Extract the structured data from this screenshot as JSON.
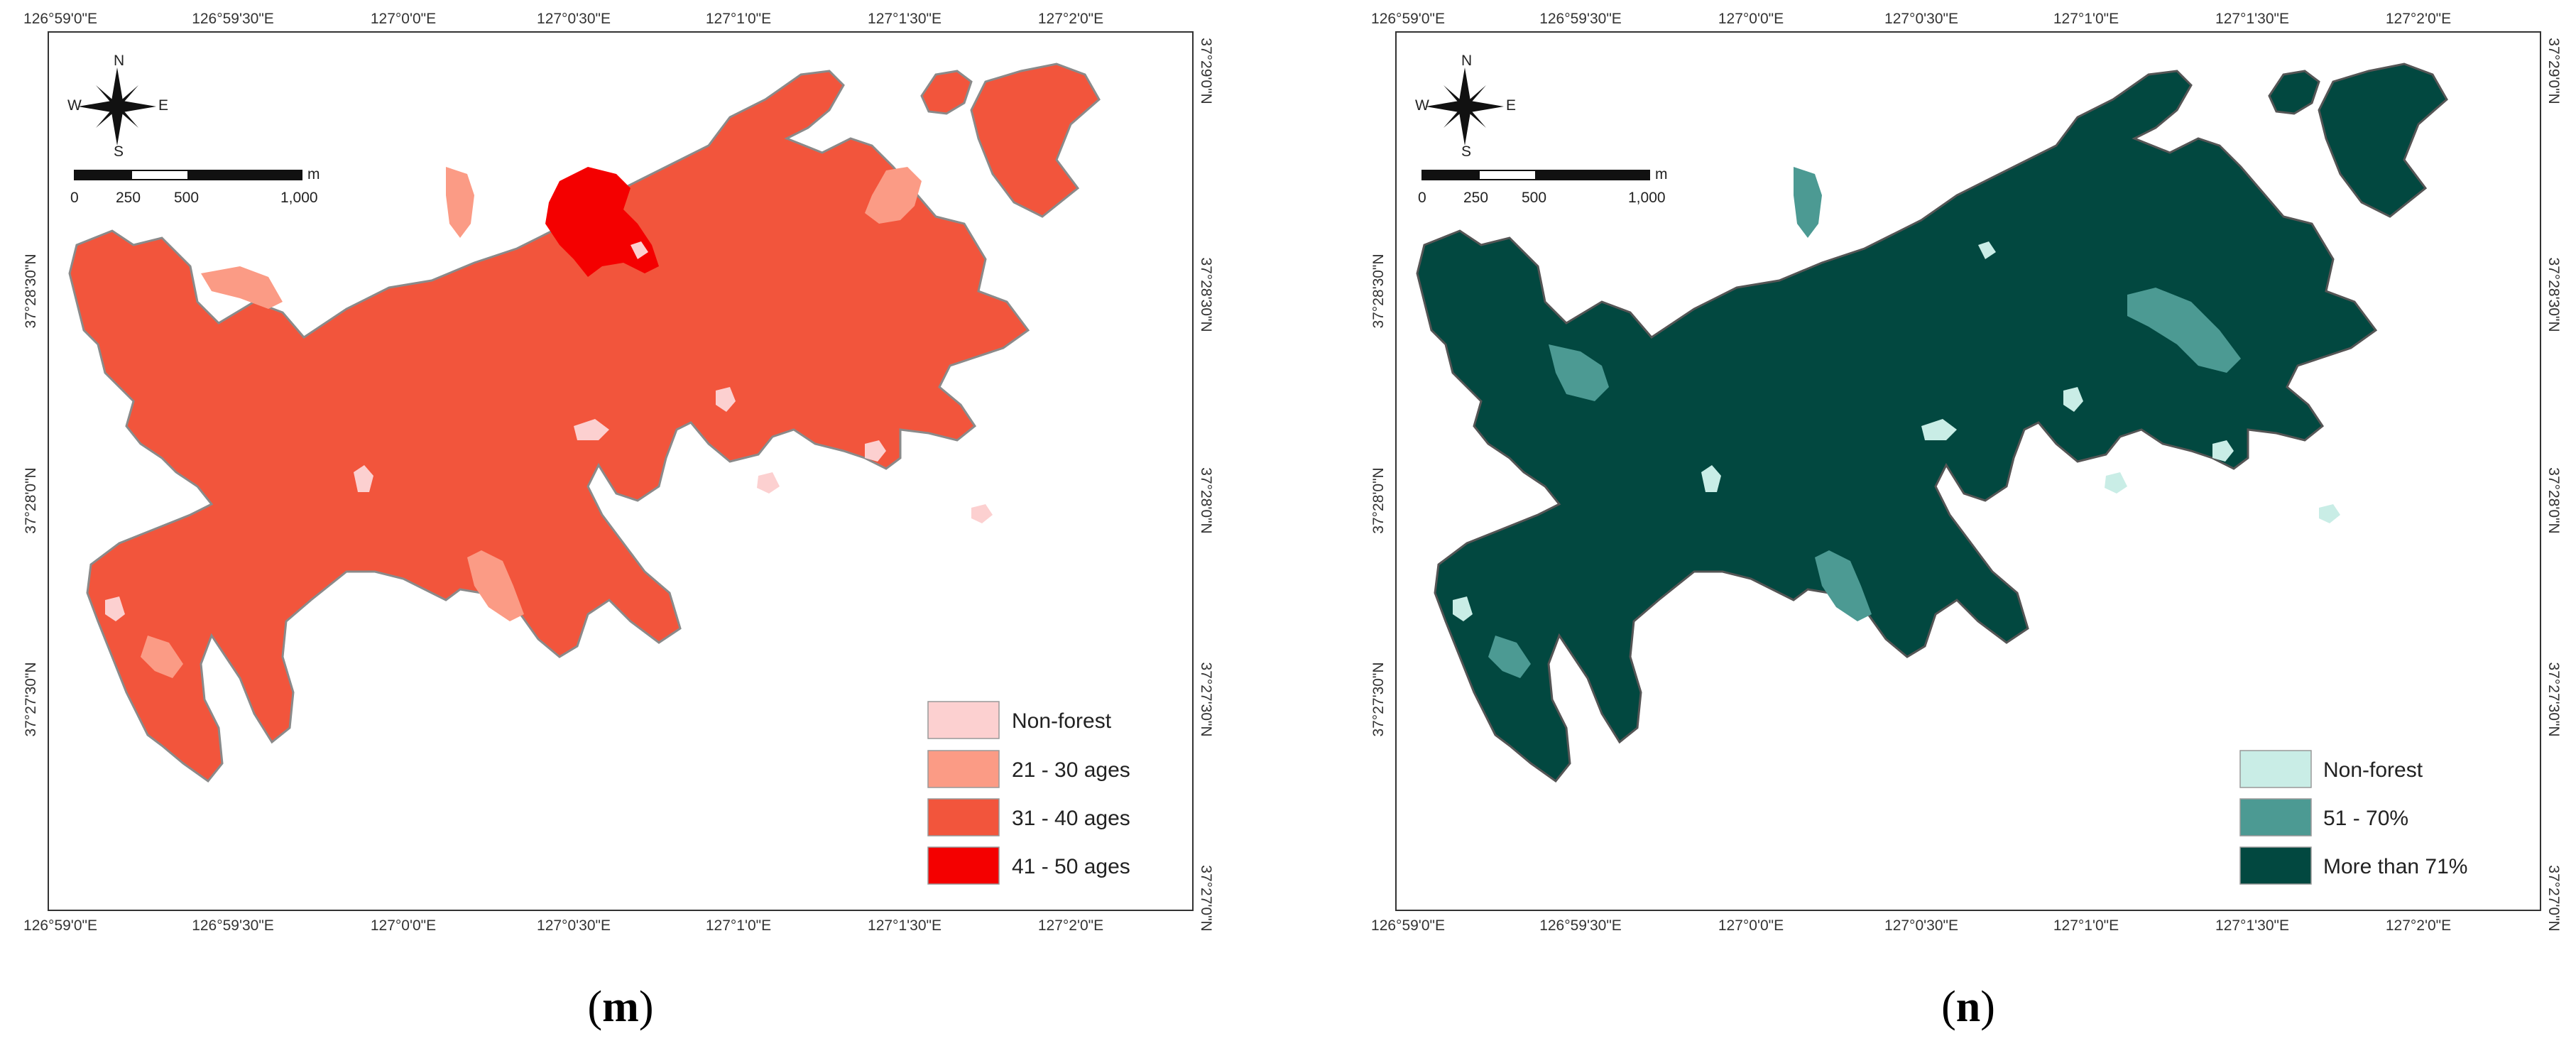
{
  "panels": [
    {
      "id": "m",
      "caption_open": "(",
      "caption_letter": "m",
      "caption_close": ")",
      "colors": {
        "base": "#f2553c",
        "border": "#8a8a8a",
        "non_forest": "#fcd0d0",
        "light": "#fb9b85",
        "dark": "#f40000"
      },
      "legend": [
        {
          "label": "Non-forest",
          "color": "#fcd0d0"
        },
        {
          "label": "21 - 30 ages",
          "color": "#fb9b85"
        },
        {
          "label": "31 - 40 ages",
          "color": "#f2553c"
        },
        {
          "label": "41 - 50 ages",
          "color": "#f40000"
        }
      ]
    },
    {
      "id": "n",
      "caption_open": "(",
      "caption_letter": "n",
      "caption_close": ")",
      "colors": {
        "base": "#024840",
        "border": "#555555",
        "non_forest": "#c9ede6",
        "light": "#4c9a93",
        "dark": "#024840"
      },
      "legend": [
        {
          "label": "Non-forest",
          "color": "#c9ede6"
        },
        {
          "label": "51 - 70%",
          "color": "#4c9a93"
        },
        {
          "label": "More than 71%",
          "color": "#024840"
        }
      ]
    }
  ],
  "axes": {
    "top_labels": [
      "126°59'0\"E",
      "126°59'30\"E",
      "127°0'0\"E",
      "127°0'30\"E",
      "127°1'0\"E",
      "127°1'30\"E",
      "127°2'0\"E"
    ],
    "bottom_labels": [
      "126°59'0\"E",
      "126°59'30\"E",
      "127°0'0\"E",
      "127°0'30\"E",
      "127°1'0\"E",
      "127°1'30\"E",
      "127°2'0\"E"
    ],
    "side_labels": [
      "37°29'0\"N",
      "37°28'30\"N",
      "37°28'0\"N",
      "37°27'30\"N",
      "37°27'0\"N"
    ]
  },
  "scale_bar": {
    "unit": "m",
    "labels": [
      "0",
      "250",
      "500",
      "1,000"
    ]
  },
  "north_arrow": {
    "icon": "compass-rose-icon",
    "n": "N",
    "s": "S",
    "e": "E",
    "w": "W"
  }
}
